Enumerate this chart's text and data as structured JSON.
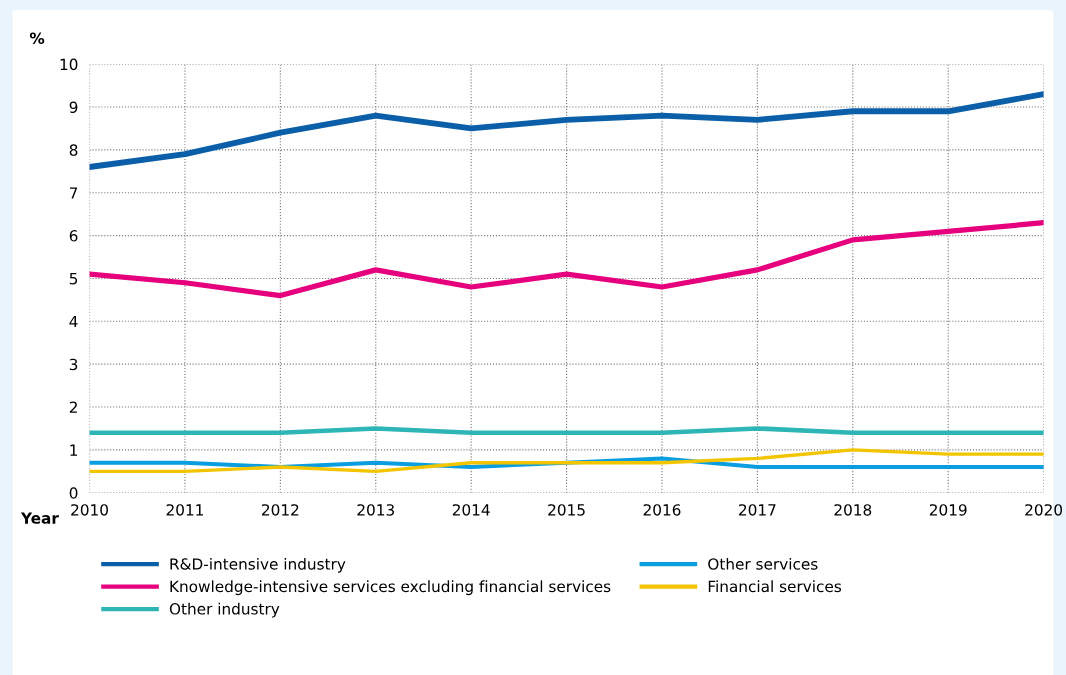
{
  "chart_data": {
    "type": "line",
    "ylabel": "%",
    "xlabel": "Year",
    "categories": [
      "2010",
      "2011",
      "2012",
      "2013",
      "2014",
      "2015",
      "2016",
      "2017",
      "2018",
      "2019",
      "2020"
    ],
    "series": [
      {
        "name": "R&D-intensive industry",
        "color": "#0a5fa8",
        "values": [
          7.6,
          7.9,
          8.4,
          8.8,
          8.5,
          8.7,
          8.8,
          8.7,
          8.9,
          8.9,
          9.3
        ]
      },
      {
        "name": "Knowledge-intensive services excluding financial services",
        "color": "#e6007e",
        "values": [
          5.1,
          4.9,
          4.6,
          5.2,
          4.8,
          5.1,
          4.8,
          5.2,
          5.9,
          6.1,
          6.3
        ]
      },
      {
        "name": "Other industry",
        "color": "#2eb5b5",
        "values": [
          1.4,
          1.4,
          1.4,
          1.5,
          1.4,
          1.4,
          1.4,
          1.5,
          1.4,
          1.4,
          1.4
        ]
      },
      {
        "name": "Other services",
        "color": "#0a9ee0",
        "values": [
          0.7,
          0.7,
          0.6,
          0.7,
          0.6,
          0.7,
          0.8,
          0.6,
          0.6,
          0.6,
          0.6
        ]
      },
      {
        "name": "Financial services",
        "color": "#f2c500",
        "values": [
          0.5,
          0.5,
          0.6,
          0.5,
          0.7,
          0.7,
          0.7,
          0.8,
          1.0,
          0.9,
          0.9
        ]
      }
    ],
    "ylim": [
      0,
      10
    ],
    "yticks": [
      0,
      1,
      2,
      3,
      4,
      5,
      6,
      7,
      8,
      9,
      10
    ],
    "grid": true,
    "legend": "bottom",
    "line_style": "solid",
    "marker": "none"
  }
}
